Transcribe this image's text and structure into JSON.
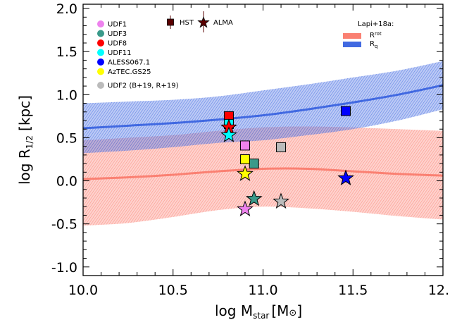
{
  "chart_data": {
    "type": "scatter",
    "xlim": [
      10.0,
      12.0
    ],
    "ylim": [
      -1.1,
      2.05
    ],
    "x_ticks": [
      "10.0",
      "10.5",
      "11.0",
      "11.5",
      "12.0"
    ],
    "y_ticks": [
      "-1.0",
      "-0.5",
      "0.0",
      "0.5",
      "1.0",
      "1.5",
      "2.0"
    ],
    "xlabel": {
      "main": "log M",
      "sub": "star",
      "unit": "[M",
      "sun": "⊙",
      "close": "]"
    },
    "ylabel": {
      "main": "log R",
      "sub": "1/2",
      "unit": "[kpc]"
    },
    "colors": {
      "UDF1": "#ee82ee",
      "UDF3": "#3a9a8a",
      "UDF8": "#ff0000",
      "UDF11": "#00ffff",
      "ALESS067.1": "#0000ff",
      "AzTEC.GS25": "#ffff00",
      "UDF2": "#bbbbbb",
      "R_rot": "#fa8072",
      "R_q": "#4169e1",
      "HST_ALMA_symbol": "#5a0000"
    },
    "legend": {
      "sources": [
        {
          "label": "UDF1",
          "color": "#ee82ee"
        },
        {
          "label": "UDF3",
          "color": "#3a9a8a"
        },
        {
          "label": "UDF8",
          "color": "#ff0000"
        },
        {
          "label": "UDF11",
          "color": "#00ffff"
        },
        {
          "label": "ALESS067.1",
          "color": "#0000ff"
        },
        {
          "label": "AzTEC.GS25",
          "color": "#ffff00"
        }
      ],
      "udf2": {
        "label": "UDF2 (B+19, R+19)",
        "color": "#bbbbbb"
      },
      "hst_label": "HST",
      "alma_label": "ALMA",
      "model_title": "Lapi+18a:",
      "models": [
        {
          "label": "R",
          "sub": "rot",
          "color": "#fa8072"
        },
        {
          "label": "R",
          "sub": "q",
          "color": "#4169e1"
        }
      ]
    },
    "series": [
      {
        "name": "HST",
        "marker": "square",
        "points": [
          {
            "source": "UDF1",
            "x": 10.9,
            "y": 0.41
          },
          {
            "source": "UDF3",
            "x": 10.95,
            "y": 0.2
          },
          {
            "source": "UDF8",
            "x": 10.81,
            "y": 0.75
          },
          {
            "source": "UDF11",
            "x": 10.81,
            "y": 0.66
          },
          {
            "source": "ALESS067.1",
            "x": 11.46,
            "y": 0.81
          },
          {
            "source": "AzTEC.GS25",
            "x": 10.9,
            "y": 0.25
          },
          {
            "source": "UDF2",
            "x": 11.1,
            "y": 0.39
          }
        ]
      },
      {
        "name": "ALMA",
        "marker": "star",
        "points": [
          {
            "source": "UDF1",
            "x": 10.9,
            "y": -0.33
          },
          {
            "source": "UDF3",
            "x": 10.95,
            "y": -0.21
          },
          {
            "source": "UDF8",
            "x": 10.81,
            "y": 0.62
          },
          {
            "source": "UDF11",
            "x": 10.81,
            "y": 0.53
          },
          {
            "source": "ALESS067.1",
            "x": 11.46,
            "y": 0.03
          },
          {
            "source": "AzTEC.GS25",
            "x": 10.9,
            "y": 0.08
          },
          {
            "source": "UDF2",
            "x": 11.1,
            "y": -0.24
          }
        ]
      }
    ],
    "bands": [
      {
        "name": "R_rot",
        "color": "#fa8072",
        "x": [
          10.0,
          10.25,
          10.5,
          10.75,
          11.0,
          11.25,
          11.5,
          11.75,
          12.0
        ],
        "mean": [
          0.02,
          0.04,
          0.07,
          0.11,
          0.14,
          0.14,
          0.11,
          0.08,
          0.06
        ],
        "upper": [
          0.47,
          0.5,
          0.53,
          0.58,
          0.62,
          0.63,
          0.62,
          0.6,
          0.58
        ],
        "lower": [
          -0.52,
          -0.49,
          -0.42,
          -0.34,
          -0.3,
          -0.32,
          -0.36,
          -0.41,
          -0.45
        ]
      },
      {
        "name": "R_q",
        "color": "#4169e1",
        "x": [
          10.0,
          10.25,
          10.5,
          10.75,
          11.0,
          11.25,
          11.5,
          11.75,
          12.0
        ],
        "mean": [
          0.61,
          0.64,
          0.67,
          0.71,
          0.76,
          0.83,
          0.91,
          1.0,
          1.11
        ],
        "upper": [
          0.9,
          0.92,
          0.94,
          0.98,
          1.05,
          1.12,
          1.2,
          1.28,
          1.39
        ],
        "lower": [
          0.32,
          0.35,
          0.39,
          0.44,
          0.47,
          0.53,
          0.6,
          0.7,
          0.83
        ]
      }
    ]
  }
}
